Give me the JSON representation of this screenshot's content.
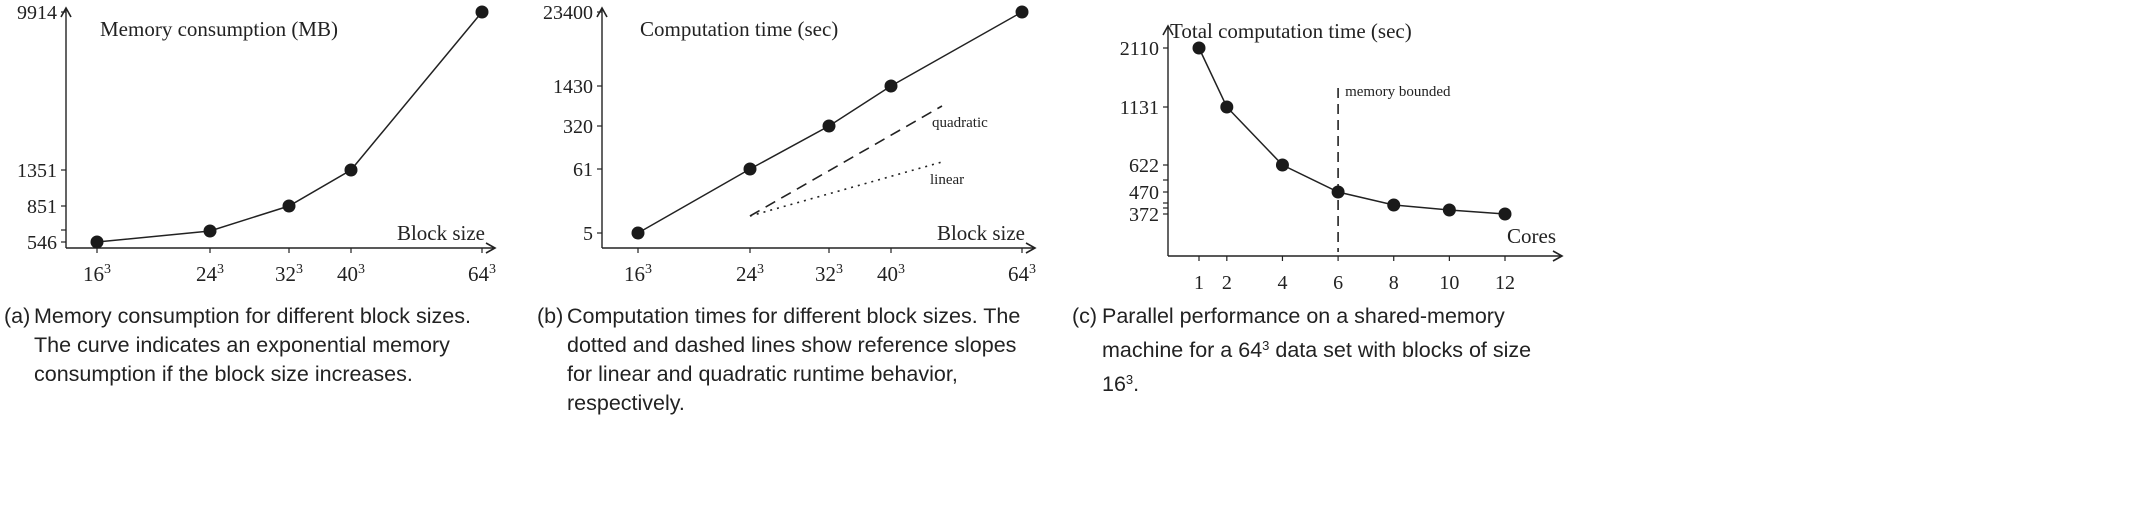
{
  "chart_data": [
    {
      "type": "line",
      "title": "Memory consumption (MB)",
      "xlabel": "Block size",
      "x": [
        "16^3",
        "24^3",
        "32^3",
        "40^3",
        "64^3"
      ],
      "x_ticks": [
        {
          "base": "16",
          "exp": "3"
        },
        {
          "base": "24",
          "exp": "3"
        },
        {
          "base": "32",
          "exp": "3"
        },
        {
          "base": "40",
          "exp": "3"
        },
        {
          "base": "64",
          "exp": "3"
        }
      ],
      "y_ticks": [
        "9914",
        "1351",
        "851",
        "546"
      ],
      "y_tick_values": [
        9914,
        1351,
        851,
        546
      ],
      "y": [
        546,
        600,
        851,
        1351,
        9914
      ],
      "grid": false,
      "caption": {
        "label": "(a)",
        "text": "Memory consumption for different block sizes. The curve indicates an exponential memory consumption if the block size increases."
      }
    },
    {
      "type": "line",
      "title": "Computation time (sec)",
      "xlabel": "Block size",
      "x": [
        "16^3",
        "24^3",
        "32^3",
        "40^3",
        "64^3"
      ],
      "x_ticks": [
        {
          "base": "16",
          "exp": "3"
        },
        {
          "base": "24",
          "exp": "3"
        },
        {
          "base": "32",
          "exp": "3"
        },
        {
          "base": "40",
          "exp": "3"
        },
        {
          "base": "64",
          "exp": "3"
        }
      ],
      "y_ticks": [
        "23400",
        "1430",
        "320",
        "61",
        "5"
      ],
      "y_tick_values": [
        23400,
        1430,
        320,
        61,
        5
      ],
      "y_scale": "log",
      "y": [
        5,
        61,
        320,
        1430,
        23400
      ],
      "reference_lines": [
        {
          "label": "quadratic",
          "style": "dashed"
        },
        {
          "label": "linear",
          "style": "dotted"
        }
      ],
      "grid": false,
      "caption": {
        "label": "(b)",
        "text": "Computation times for different block sizes. The dotted and dashed lines show reference slopes for linear and quadratic runtime behavior, respectively."
      }
    },
    {
      "type": "line",
      "title": "Total computation time (sec)",
      "xlabel": "Cores",
      "x": [
        1,
        2,
        4,
        6,
        8,
        10,
        12
      ],
      "x_ticks": [
        "1",
        "2",
        "4",
        "6",
        "8",
        "10",
        "12"
      ],
      "y_ticks": [
        "2110",
        "1131",
        "622",
        "470",
        "372"
      ],
      "y_tick_values": [
        2110,
        1131,
        622,
        470,
        372
      ],
      "y": [
        2110,
        1131,
        622,
        470,
        405,
        385,
        372
      ],
      "annotation": {
        "x": 6,
        "label": "memory bounded",
        "style": "dashed"
      },
      "grid": false,
      "caption": {
        "label": "(c)",
        "text_before": "Parallel performance on a shared-memory machine for a ",
        "base": "64",
        "exp": "3",
        "text_middle": " data set with blocks of size ",
        "base2": "16",
        "exp2": "3",
        "text_after": "."
      }
    }
  ]
}
